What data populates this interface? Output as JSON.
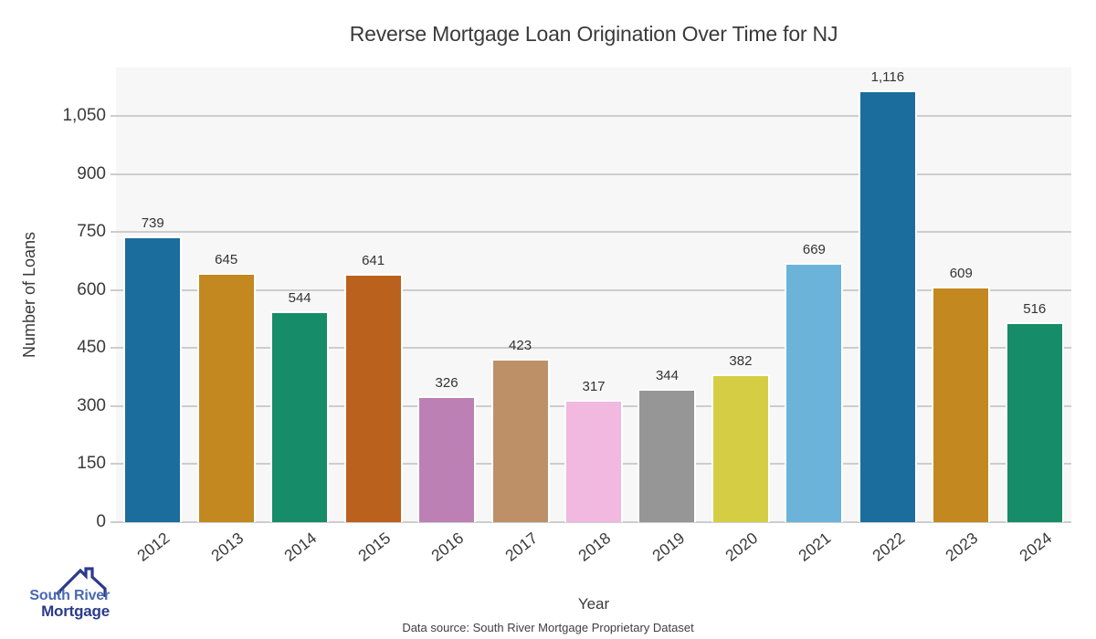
{
  "title": "Reverse Mortgage Loan Origination Over Time for NJ",
  "footer": "Data source: South River Mortgage Proprietary Dataset",
  "logo": {
    "line1": "South River",
    "line2": "Mortgage",
    "text1_color": "#4a69b1",
    "text2_color": "#2b3a8c",
    "roof_color": "#2b3a8c"
  },
  "chart_data": {
    "type": "bar",
    "title": "Reverse Mortgage Loan Origination Over Time for NJ",
    "xlabel": "Year",
    "ylabel": "Number of Loans",
    "categories": [
      "2012",
      "2013",
      "2014",
      "2015",
      "2016",
      "2017",
      "2018",
      "2019",
      "2020",
      "2021",
      "2022",
      "2023",
      "2024"
    ],
    "values": [
      739,
      645,
      544,
      641,
      326,
      423,
      317,
      344,
      382,
      669,
      1116,
      609,
      516
    ],
    "value_labels": [
      "739",
      "645",
      "544",
      "641",
      "326",
      "423",
      "317",
      "344",
      "382",
      "669",
      "1,116",
      "609",
      "516"
    ],
    "bar_colors": [
      "#1a6d9c",
      "#c38820",
      "#178c68",
      "#bb611e",
      "#bd80b4",
      "#bd9068",
      "#f1b8e0",
      "#969696",
      "#d5ce44",
      "#6cb3d9",
      "#1a6d9c",
      "#c38820",
      "#178c68"
    ],
    "yticks": [
      0,
      150,
      300,
      450,
      600,
      750,
      900,
      1050
    ],
    "ylim": [
      0,
      1175
    ],
    "grid": true,
    "legend": "none",
    "plot_bg": "#f7f7f7",
    "gridline_color": "#cdcdcd"
  }
}
